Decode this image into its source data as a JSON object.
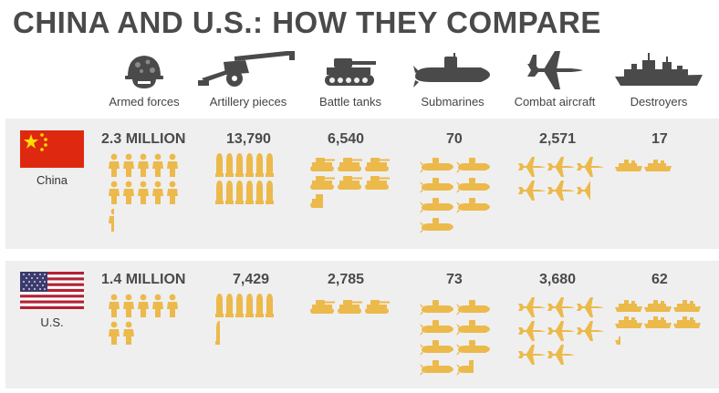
{
  "title": "CHINA AND U.S.: HOW THEY COMPARE",
  "accent": "#ecb94b",
  "categories": [
    {
      "label": "Armed forces",
      "icon": "soldier-helmet-icon"
    },
    {
      "label": "Artillery pieces",
      "icon": "artillery-gun-icon"
    },
    {
      "label": "Battle tanks",
      "icon": "battle-tank-icon"
    },
    {
      "label": "Submarines",
      "icon": "submarine-icon"
    },
    {
      "label": "Combat aircraft",
      "icon": "fighter-jet-icon"
    },
    {
      "label": "Destroyers",
      "icon": "destroyer-ship-icon"
    }
  ],
  "countries": [
    {
      "name": "China",
      "values": [
        "2.3 MILLION",
        "13,790",
        "6,540",
        "70",
        "2,571",
        "17"
      ],
      "icon_units": [
        10.5,
        12,
        6.5,
        7,
        5.5,
        2
      ]
    },
    {
      "name": "U.S.",
      "values": [
        "1.4 MILLION",
        "7,429",
        "2,785",
        "73",
        "3,680",
        "62"
      ],
      "icon_units": [
        7,
        6.5,
        3,
        7.5,
        8,
        6.2
      ]
    }
  ]
}
